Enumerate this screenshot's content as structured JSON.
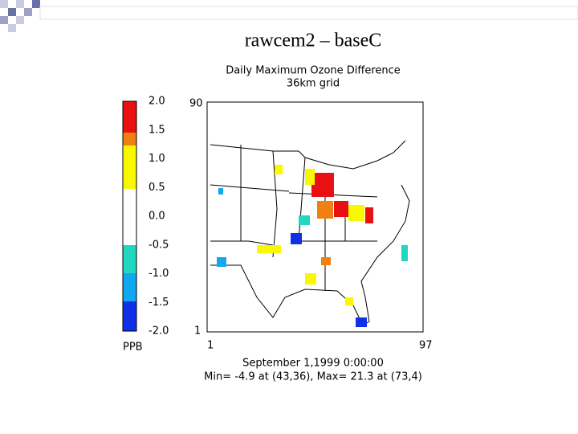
{
  "slide_title": "rawcem2 – baseC",
  "plot": {
    "title": "Daily Maximum Ozone Difference",
    "subtitle": "36km grid",
    "colorbar": {
      "labels": [
        "2.0",
        "1.5",
        "1.0",
        "0.5",
        "0.0",
        "-0.5",
        "-1.0",
        "-1.5",
        "-2.0"
      ],
      "unit": "PPB"
    },
    "y_axis": {
      "top": "90",
      "bottom": "1"
    },
    "x_axis": {
      "left": "1",
      "right": "97"
    },
    "date": "September 1,1999 0:00:00",
    "stats": "Min=   -4.9 at (43,36), Max=   21.3 at (73,4)"
  }
}
